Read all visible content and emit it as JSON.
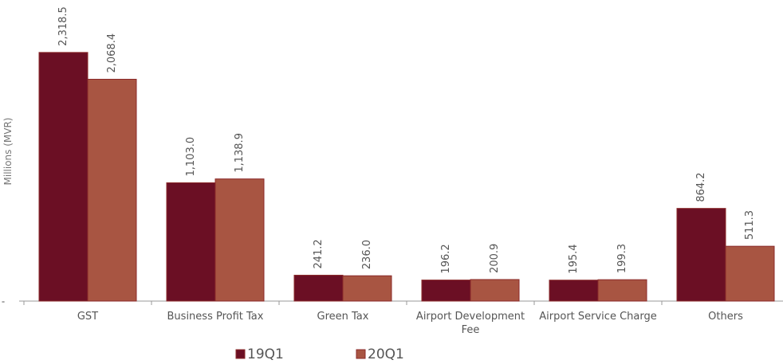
{
  "chart_data": {
    "type": "bar",
    "y_label": "Millions (MVR)",
    "categories": [
      "GST",
      "Business Profit Tax",
      "Green Tax",
      "Airport Development Fee",
      "Airport Service Charge",
      "Others"
    ],
    "series": [
      {
        "name": "19Q1",
        "color": "#6b0f24",
        "values": [
          2318.5,
          1103.0,
          241.2,
          196.2,
          195.4,
          864.2
        ],
        "value_labels": [
          "2,318.5",
          "1,103.0",
          "241.2",
          "196.2",
          "195.4",
          "864.2"
        ]
      },
      {
        "name": "20Q1",
        "color": "#a85542",
        "values": [
          2068.4,
          1138.9,
          236.0,
          200.9,
          199.3,
          511.3
        ],
        "value_labels": [
          "2,068.4",
          "1,138.9",
          "236.0",
          "200.9",
          "199.3",
          "511.3"
        ]
      }
    ],
    "ylim": [
      0,
      2800
    ],
    "yticks": [
      {
        "value": 0,
        "label": "-"
      }
    ],
    "legend": "bottom"
  }
}
